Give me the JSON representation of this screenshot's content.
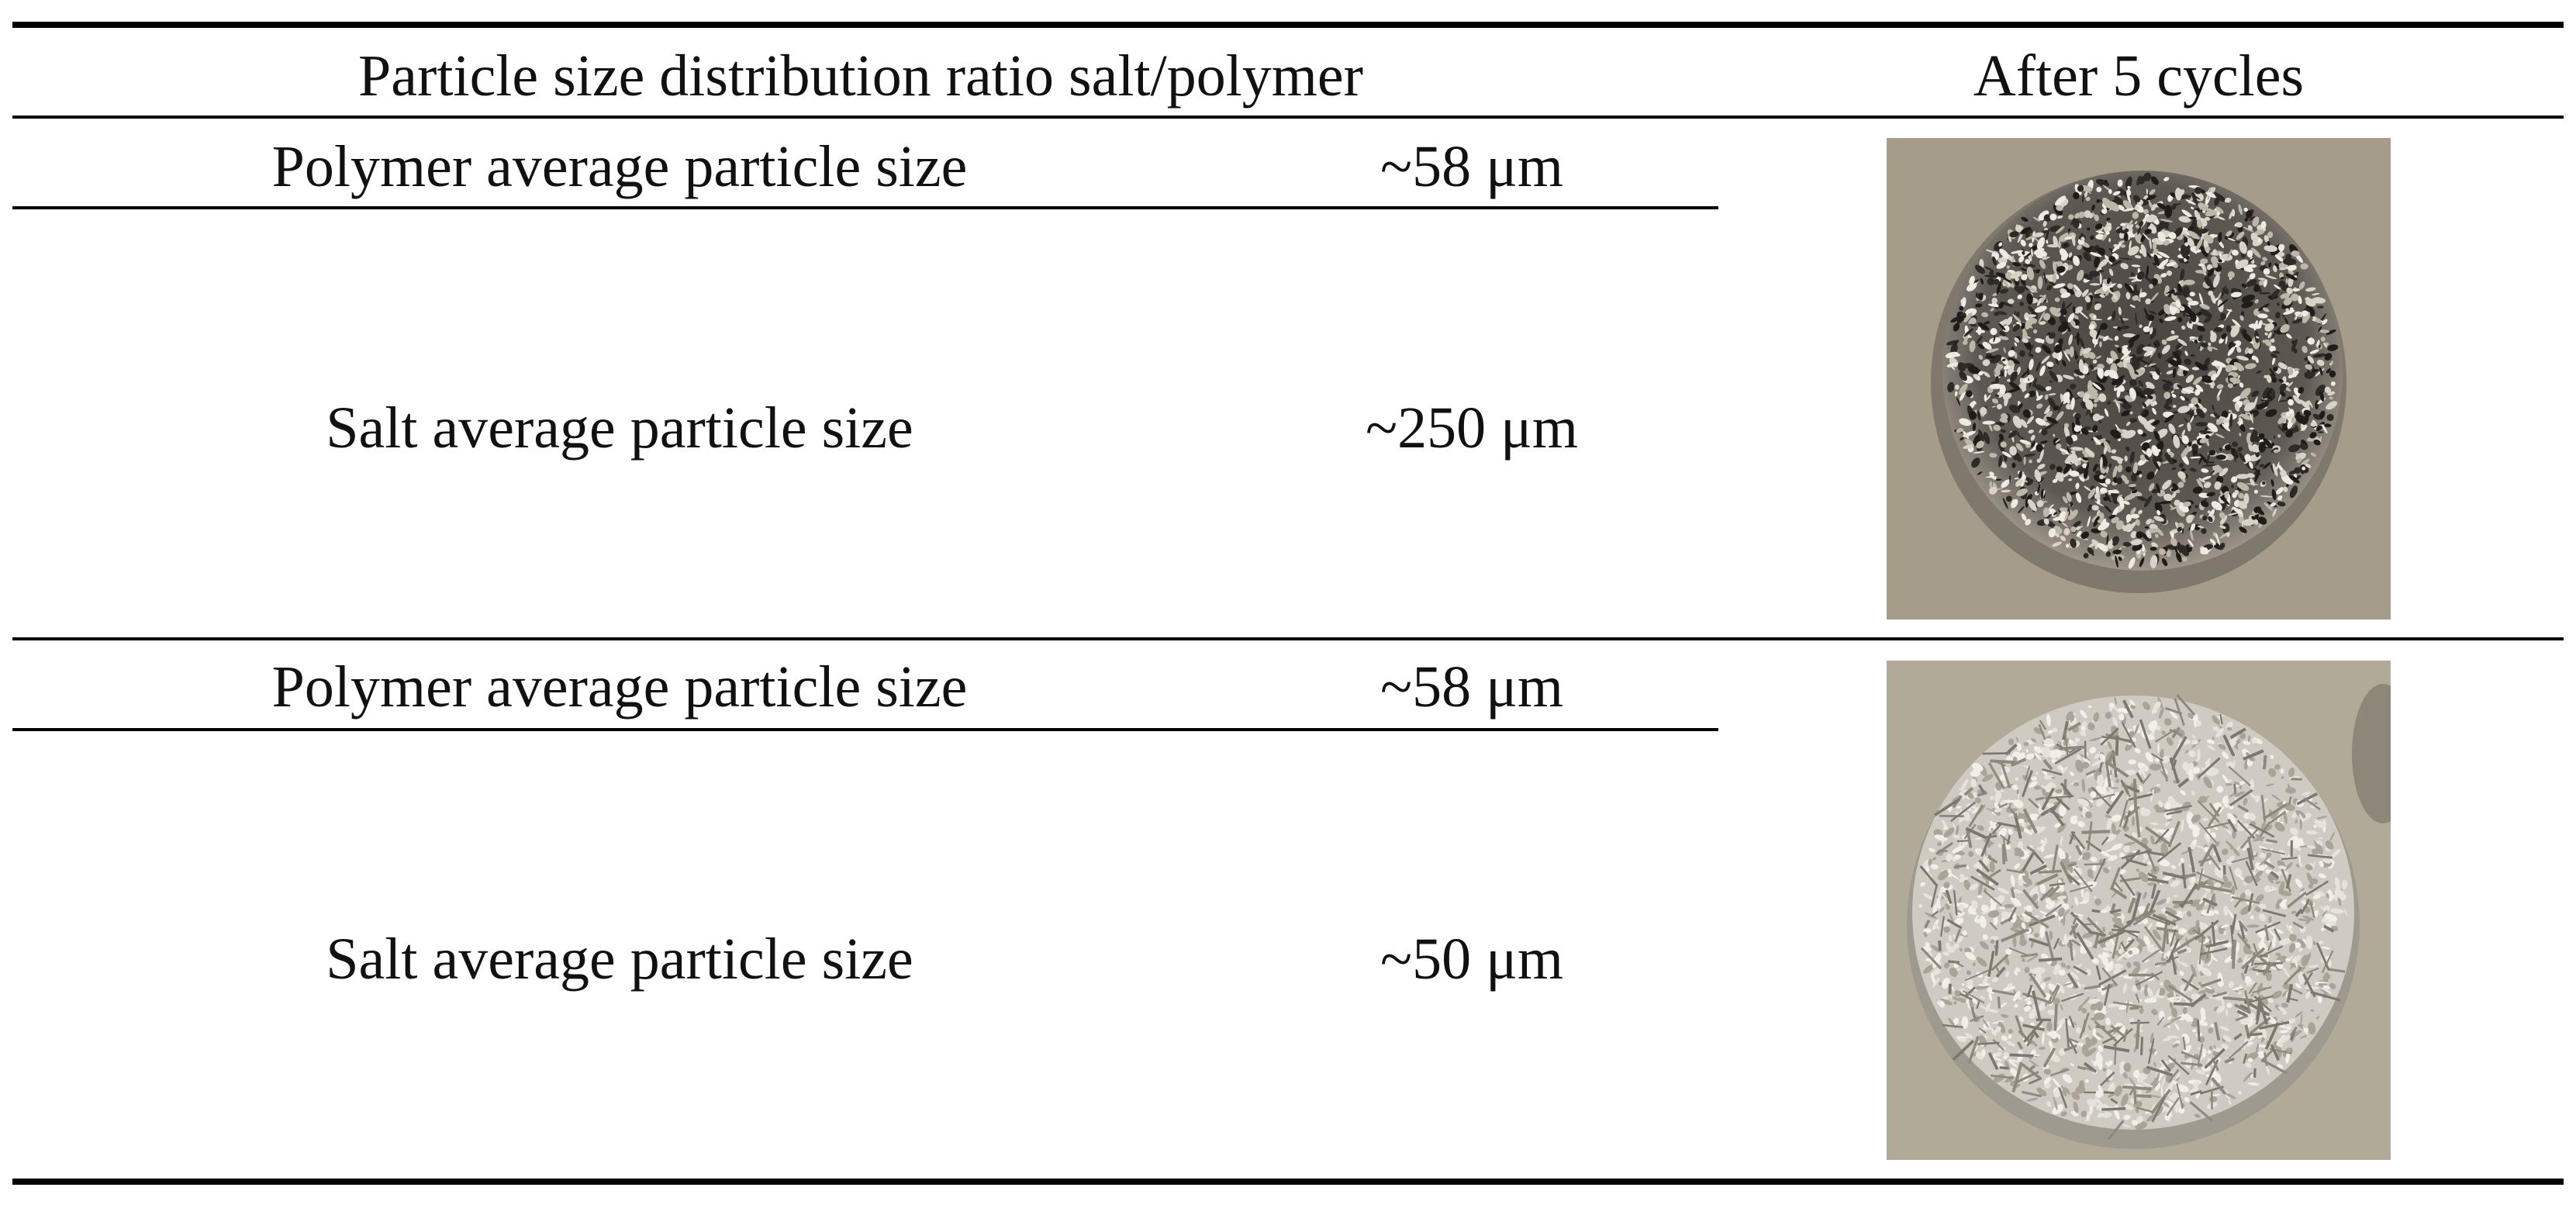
{
  "table": {
    "header": [
      "Particle size distribution ratio salt/polymer",
      "After 5 cycles"
    ],
    "groups": [
      {
        "rows": [
          [
            "Polymer average particle size",
            "~58 μm"
          ],
          [
            "Salt average particle size",
            "~250 μm"
          ]
        ]
      },
      {
        "rows": [
          [
            "Polymer average particle size",
            "~58 μm"
          ],
          [
            "Salt average particle size",
            "~50 μm"
          ]
        ]
      }
    ]
  }
}
